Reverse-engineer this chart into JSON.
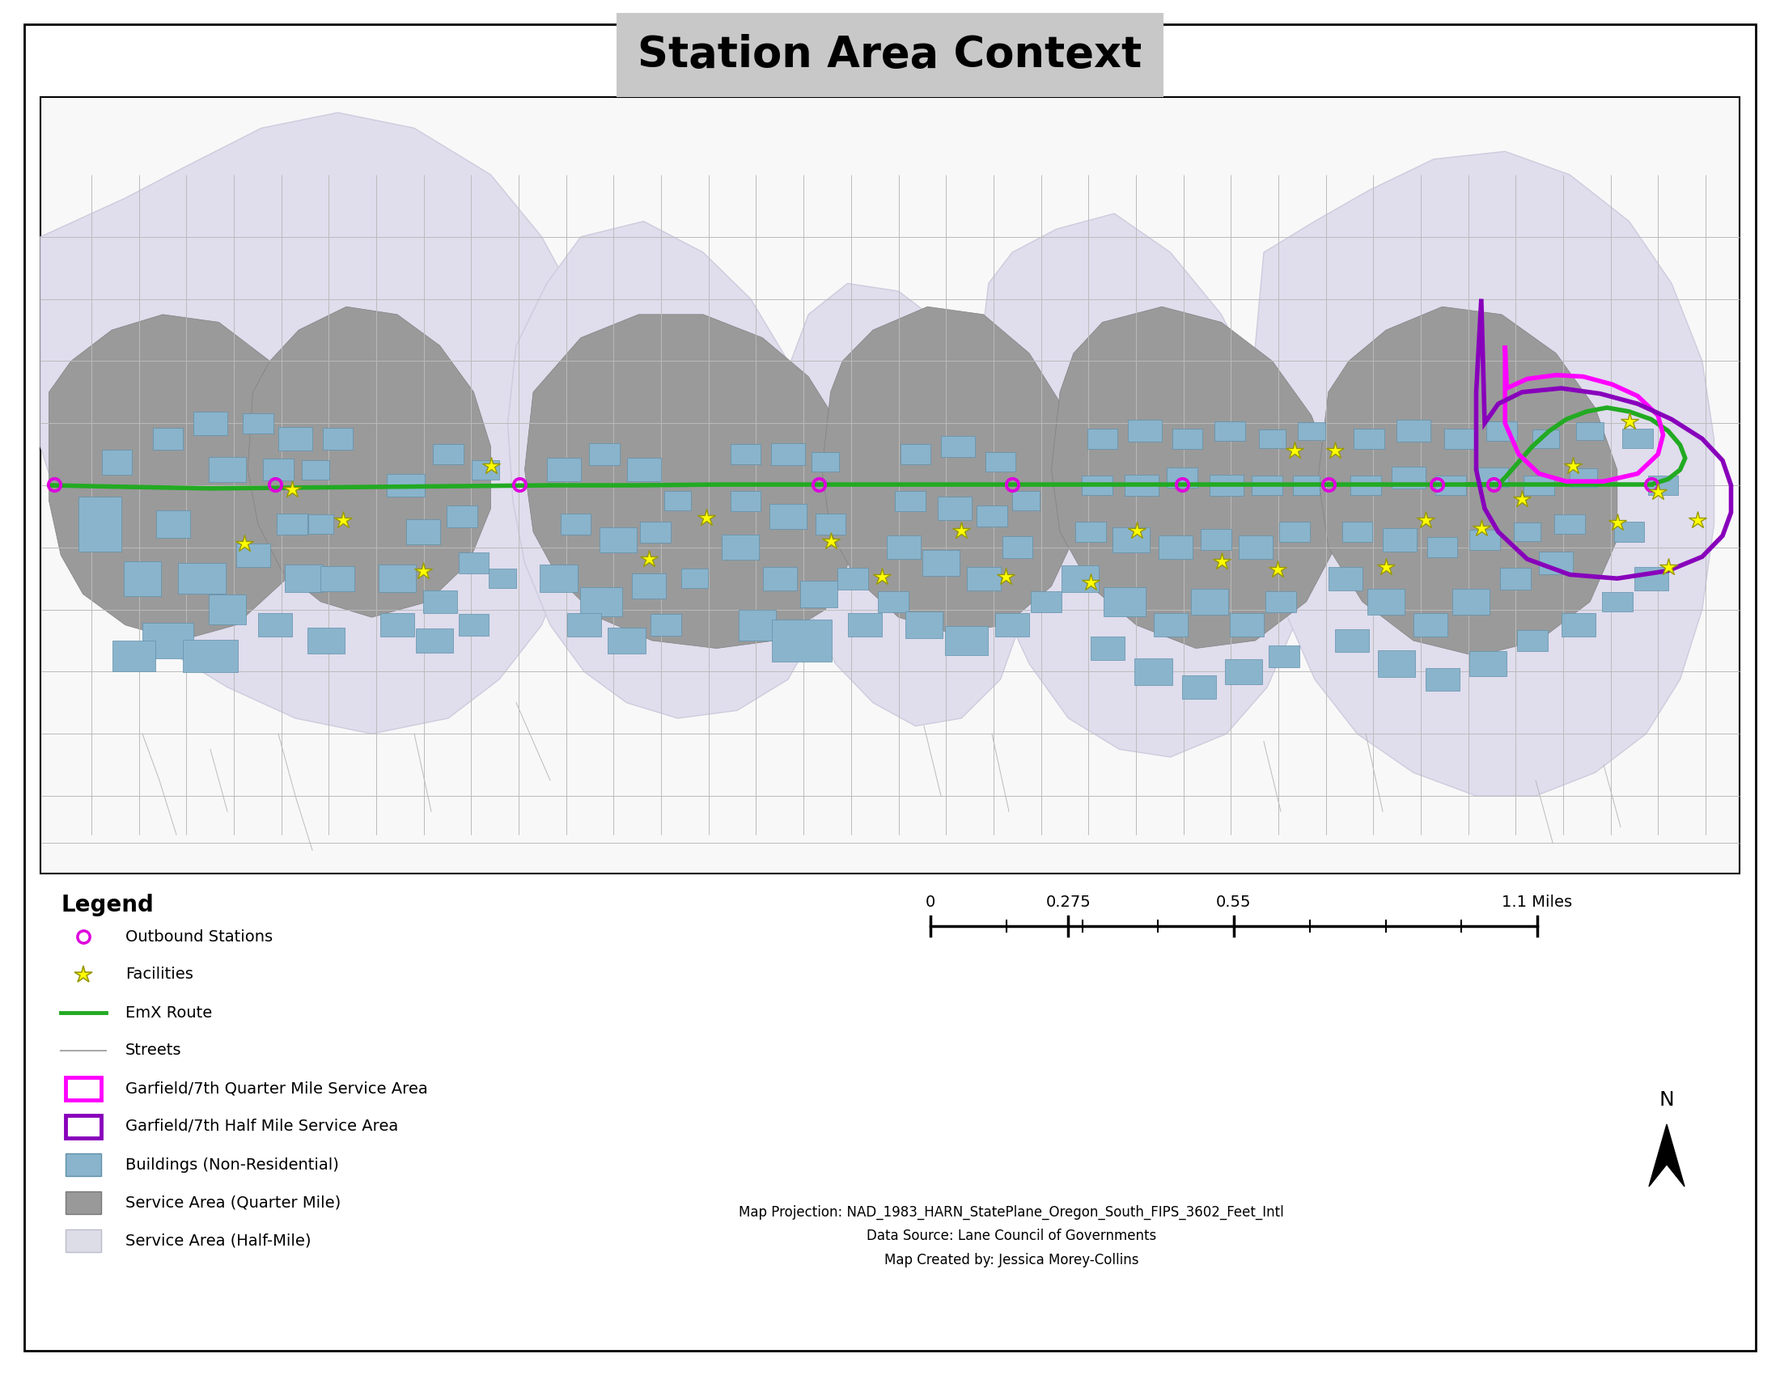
{
  "title": "Station Area Context",
  "title_fontsize": 38,
  "title_bg_color": "#c8c8c8",
  "legend_title": "Legend",
  "legend_items": [
    {
      "type": "marker",
      "marker": "o",
      "color": "#dd00dd",
      "mfc": "none",
      "mew": 2.5,
      "ms": 11,
      "label": "Outbound Stations"
    },
    {
      "type": "star",
      "color": "#ffff00",
      "edge_color": "#999900",
      "ms": 16,
      "label": "Facilities"
    },
    {
      "type": "line",
      "color": "#22aa22",
      "lw": 3.5,
      "label": "EmX Route"
    },
    {
      "type": "line",
      "color": "#aaaaaa",
      "lw": 1.5,
      "label": "Streets"
    },
    {
      "type": "patch",
      "facecolor": "#ffffff",
      "edgecolor": "#ff00ff",
      "lw": 3.5,
      "label": "Garfield/7th Quarter Mile Service Area"
    },
    {
      "type": "patch",
      "facecolor": "#ffffff",
      "edgecolor": "#8800bb",
      "lw": 3.5,
      "label": "Garfield/7th Half Mile Service Area"
    },
    {
      "type": "patch",
      "facecolor": "#8ab4cc",
      "edgecolor": "#6090aa",
      "lw": 1,
      "label": "Buildings (Non-Residential)"
    },
    {
      "type": "patch",
      "facecolor": "#999999",
      "edgecolor": "#777777",
      "lw": 1,
      "label": "Service Area (Quarter Mile)"
    },
    {
      "type": "patch",
      "facecolor": "#dddde8",
      "edgecolor": "#bbbbcc",
      "lw": 1,
      "label": "Service Area (Half-Mile)"
    }
  ],
  "projection_text": "Map Projection: NAD_1983_HARN_StatePlane_Oregon_South_FIPS_3602_Feet_Intl\nData Source: Lane Council of Governments\nMap Created by: Jessica Morey-Collins",
  "half_mile_color": "#e0dded",
  "half_mile_edge": "#ccccdd",
  "quarter_mile_color": "#9a9a9a",
  "quarter_mile_edge": "#808080",
  "building_color": "#8ab4cc",
  "building_edge": "#6090aa",
  "emx_route_color": "#22aa22",
  "station_color": "#dd00dd",
  "facility_fg": "#ffff00",
  "facility_edge": "#999900",
  "quarter_service_outline": "#ff00ff",
  "half_service_outline": "#8800bb",
  "street_color": "#bbbbbb",
  "map_bg": "#f8f8f8"
}
